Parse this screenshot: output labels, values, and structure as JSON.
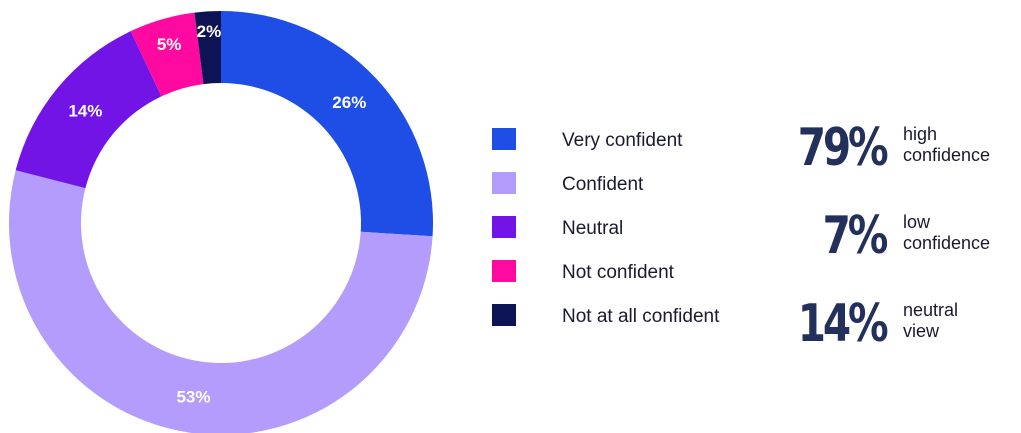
{
  "chart_data": {
    "type": "pie",
    "donut": true,
    "categories": [
      "Very confident",
      "Confident",
      "Neutral",
      "Not confident",
      "Not at all confident"
    ],
    "values": [
      26,
      53,
      14,
      5,
      2
    ],
    "labels": [
      "26%",
      "53%",
      "14%",
      "5%",
      "2%"
    ],
    "colors": [
      "#1f4ee6",
      "#b39cfc",
      "#7214e6",
      "#ff0aa0",
      "#0d1456"
    ],
    "label_color": "#ffffff",
    "legend_position": "right"
  },
  "summary": [
    {
      "value": "79%",
      "line1": "high",
      "line2": "confidence"
    },
    {
      "value": "7%",
      "line1": "low",
      "line2": "confidence"
    },
    {
      "value": "14%",
      "line1": "neutral",
      "line2": "view"
    }
  ],
  "colors": {
    "stat_value": "#23305c",
    "text": "#1a1a2e"
  }
}
